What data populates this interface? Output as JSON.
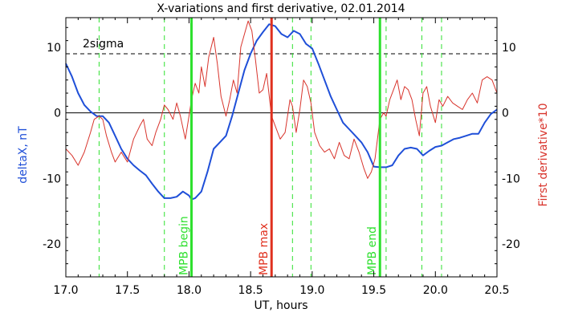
{
  "chart_data": {
    "type": "line",
    "title": "X-variations and first derivative, 02.01.2014",
    "xlabel": "UT, hours",
    "ylabel_left": "deltaX, nT",
    "ylabel_right": "First derivative*10",
    "xlim": [
      17.0,
      20.5
    ],
    "ylim": [
      -25,
      14.5
    ],
    "xticks": [
      17.0,
      17.5,
      18.0,
      18.5,
      19.0,
      19.5,
      20.0,
      20.5
    ],
    "xtick_labels": [
      "17.0",
      "17.5",
      "18.0",
      "18.5",
      "19.0",
      "19.5",
      "20.0",
      "20.5"
    ],
    "yticks": [
      -20,
      -10,
      0,
      10
    ],
    "ytick_labels": [
      "-20",
      "-10",
      "0",
      "10"
    ],
    "grid": false,
    "colors": {
      "deltaX": "#1f4fd8",
      "derivative": "#d8342c",
      "mpb_marker": "#2ee02e",
      "mpb_max": "#e0301e",
      "axis_label_left": "#1f4fd8",
      "axis_label_right": "#d8342c"
    },
    "sigma": {
      "label": "2sigma",
      "value": 9
    },
    "zero_line": 0,
    "markers": [
      {
        "x": 18.02,
        "label": "MPB begin",
        "color": "#2ee02e"
      },
      {
        "x": 18.67,
        "label": "MPB max",
        "color": "#e0301e"
      },
      {
        "x": 19.55,
        "label": "MPB end",
        "color": "#2ee02e"
      }
    ],
    "dashed_lines": [
      17.27,
      17.8,
      18.84,
      18.99,
      19.6,
      19.89,
      20.05
    ],
    "series": [
      {
        "id": "deltaX",
        "values": [
          [
            17.0,
            7.5
          ],
          [
            17.05,
            5.5
          ],
          [
            17.1,
            3
          ],
          [
            17.15,
            1.2
          ],
          [
            17.2,
            0.2
          ],
          [
            17.25,
            -0.5
          ],
          [
            17.3,
            -0.5
          ],
          [
            17.35,
            -1.5
          ],
          [
            17.4,
            -3.5
          ],
          [
            17.45,
            -5.5
          ],
          [
            17.5,
            -7
          ],
          [
            17.55,
            -8
          ],
          [
            17.6,
            -8.8
          ],
          [
            17.65,
            -9.5
          ],
          [
            17.7,
            -10.8
          ],
          [
            17.75,
            -12
          ],
          [
            17.8,
            -13
          ],
          [
            17.85,
            -13
          ],
          [
            17.9,
            -12.8
          ],
          [
            17.95,
            -12
          ],
          [
            18.0,
            -12.6
          ],
          [
            18.02,
            -13.2
          ],
          [
            18.05,
            -13
          ],
          [
            18.1,
            -12
          ],
          [
            18.15,
            -9
          ],
          [
            18.2,
            -5.5
          ],
          [
            18.25,
            -4.5
          ],
          [
            18.3,
            -3.5
          ],
          [
            18.35,
            -0.5
          ],
          [
            18.4,
            3
          ],
          [
            18.45,
            6.5
          ],
          [
            18.5,
            9
          ],
          [
            18.55,
            11
          ],
          [
            18.6,
            12.3
          ],
          [
            18.65,
            13.5
          ],
          [
            18.7,
            13.2
          ],
          [
            18.75,
            12
          ],
          [
            18.8,
            11.5
          ],
          [
            18.85,
            12.5
          ],
          [
            18.9,
            12
          ],
          [
            18.95,
            10.5
          ],
          [
            19.0,
            9.8
          ],
          [
            19.05,
            7.5
          ],
          [
            19.1,
            5
          ],
          [
            19.15,
            2.5
          ],
          [
            19.2,
            0.5
          ],
          [
            19.25,
            -1.5
          ],
          [
            19.3,
            -2.5
          ],
          [
            19.35,
            -3.5
          ],
          [
            19.4,
            -4.5
          ],
          [
            19.45,
            -6
          ],
          [
            19.5,
            -8.2
          ],
          [
            19.55,
            -8.3
          ],
          [
            19.6,
            -8.3
          ],
          [
            19.65,
            -8
          ],
          [
            19.7,
            -6.5
          ],
          [
            19.75,
            -5.5
          ],
          [
            19.8,
            -5.3
          ],
          [
            19.85,
            -5.5
          ],
          [
            19.9,
            -6.5
          ],
          [
            19.95,
            -5.8
          ],
          [
            20.0,
            -5.2
          ],
          [
            20.05,
            -5
          ],
          [
            20.1,
            -4.5
          ],
          [
            20.15,
            -4
          ],
          [
            20.2,
            -3.8
          ],
          [
            20.25,
            -3.5
          ],
          [
            20.3,
            -3.2
          ],
          [
            20.35,
            -3.2
          ],
          [
            20.4,
            -1.5
          ],
          [
            20.45,
            -0.2
          ],
          [
            20.5,
            0.5
          ]
        ]
      },
      {
        "id": "derivative",
        "values": [
          [
            17.0,
            -5.5
          ],
          [
            17.05,
            -6.5
          ],
          [
            17.1,
            -8
          ],
          [
            17.15,
            -6
          ],
          [
            17.2,
            -3
          ],
          [
            17.23,
            -1
          ],
          [
            17.27,
            -0.5
          ],
          [
            17.3,
            -1
          ],
          [
            17.33,
            -3.5
          ],
          [
            17.37,
            -6
          ],
          [
            17.4,
            -7.5
          ],
          [
            17.45,
            -6
          ],
          [
            17.5,
            -7.5
          ],
          [
            17.55,
            -4
          ],
          [
            17.6,
            -2
          ],
          [
            17.63,
            -1
          ],
          [
            17.66,
            -4
          ],
          [
            17.7,
            -5
          ],
          [
            17.73,
            -3
          ],
          [
            17.77,
            -1
          ],
          [
            17.8,
            1.2
          ],
          [
            17.83,
            0.5
          ],
          [
            17.87,
            -1
          ],
          [
            17.9,
            1.5
          ],
          [
            17.93,
            -0.5
          ],
          [
            17.97,
            -4
          ],
          [
            18.0,
            -0.5
          ],
          [
            18.02,
            2
          ],
          [
            18.05,
            4.5
          ],
          [
            18.08,
            3
          ],
          [
            18.1,
            7
          ],
          [
            18.13,
            4
          ],
          [
            18.16,
            8.5
          ],
          [
            18.2,
            11.5
          ],
          [
            18.23,
            7.5
          ],
          [
            18.26,
            2.5
          ],
          [
            18.3,
            -0.5
          ],
          [
            18.33,
            2
          ],
          [
            18.36,
            5
          ],
          [
            18.39,
            3
          ],
          [
            18.42,
            10
          ],
          [
            18.45,
            12
          ],
          [
            18.48,
            14
          ],
          [
            18.51,
            12.5
          ],
          [
            18.54,
            8
          ],
          [
            18.57,
            3
          ],
          [
            18.6,
            3.5
          ],
          [
            18.63,
            6
          ],
          [
            18.67,
            -0.5
          ],
          [
            18.7,
            -2
          ],
          [
            18.74,
            -4
          ],
          [
            18.78,
            -3
          ],
          [
            18.82,
            2
          ],
          [
            18.84,
            1
          ],
          [
            18.87,
            -3
          ],
          [
            18.9,
            0.5
          ],
          [
            18.93,
            5
          ],
          [
            18.96,
            4
          ],
          [
            18.99,
            1.5
          ],
          [
            19.02,
            -3
          ],
          [
            19.06,
            -5
          ],
          [
            19.1,
            -6
          ],
          [
            19.14,
            -5.5
          ],
          [
            19.18,
            -7
          ],
          [
            19.22,
            -4.5
          ],
          [
            19.26,
            -6.5
          ],
          [
            19.3,
            -7
          ],
          [
            19.34,
            -4
          ],
          [
            19.38,
            -6
          ],
          [
            19.42,
            -8.5
          ],
          [
            19.45,
            -10
          ],
          [
            19.48,
            -9
          ],
          [
            19.51,
            -7
          ],
          [
            19.55,
            -1
          ],
          [
            19.58,
            0
          ],
          [
            19.6,
            -0.5
          ],
          [
            19.63,
            2
          ],
          [
            19.66,
            3.5
          ],
          [
            19.69,
            5
          ],
          [
            19.72,
            2
          ],
          [
            19.75,
            4
          ],
          [
            19.78,
            3.5
          ],
          [
            19.81,
            2
          ],
          [
            19.84,
            -1
          ],
          [
            19.87,
            -3.5
          ],
          [
            19.9,
            3
          ],
          [
            19.93,
            4
          ],
          [
            19.96,
            1
          ],
          [
            20.0,
            -1.5
          ],
          [
            20.03,
            2
          ],
          [
            20.06,
            1
          ],
          [
            20.1,
            2.5
          ],
          [
            20.14,
            1.5
          ],
          [
            20.18,
            1
          ],
          [
            20.22,
            0.5
          ],
          [
            20.26,
            2
          ],
          [
            20.3,
            3
          ],
          [
            20.34,
            1.5
          ],
          [
            20.38,
            5
          ],
          [
            20.42,
            5.5
          ],
          [
            20.46,
            5
          ],
          [
            20.5,
            3
          ]
        ]
      }
    ]
  }
}
